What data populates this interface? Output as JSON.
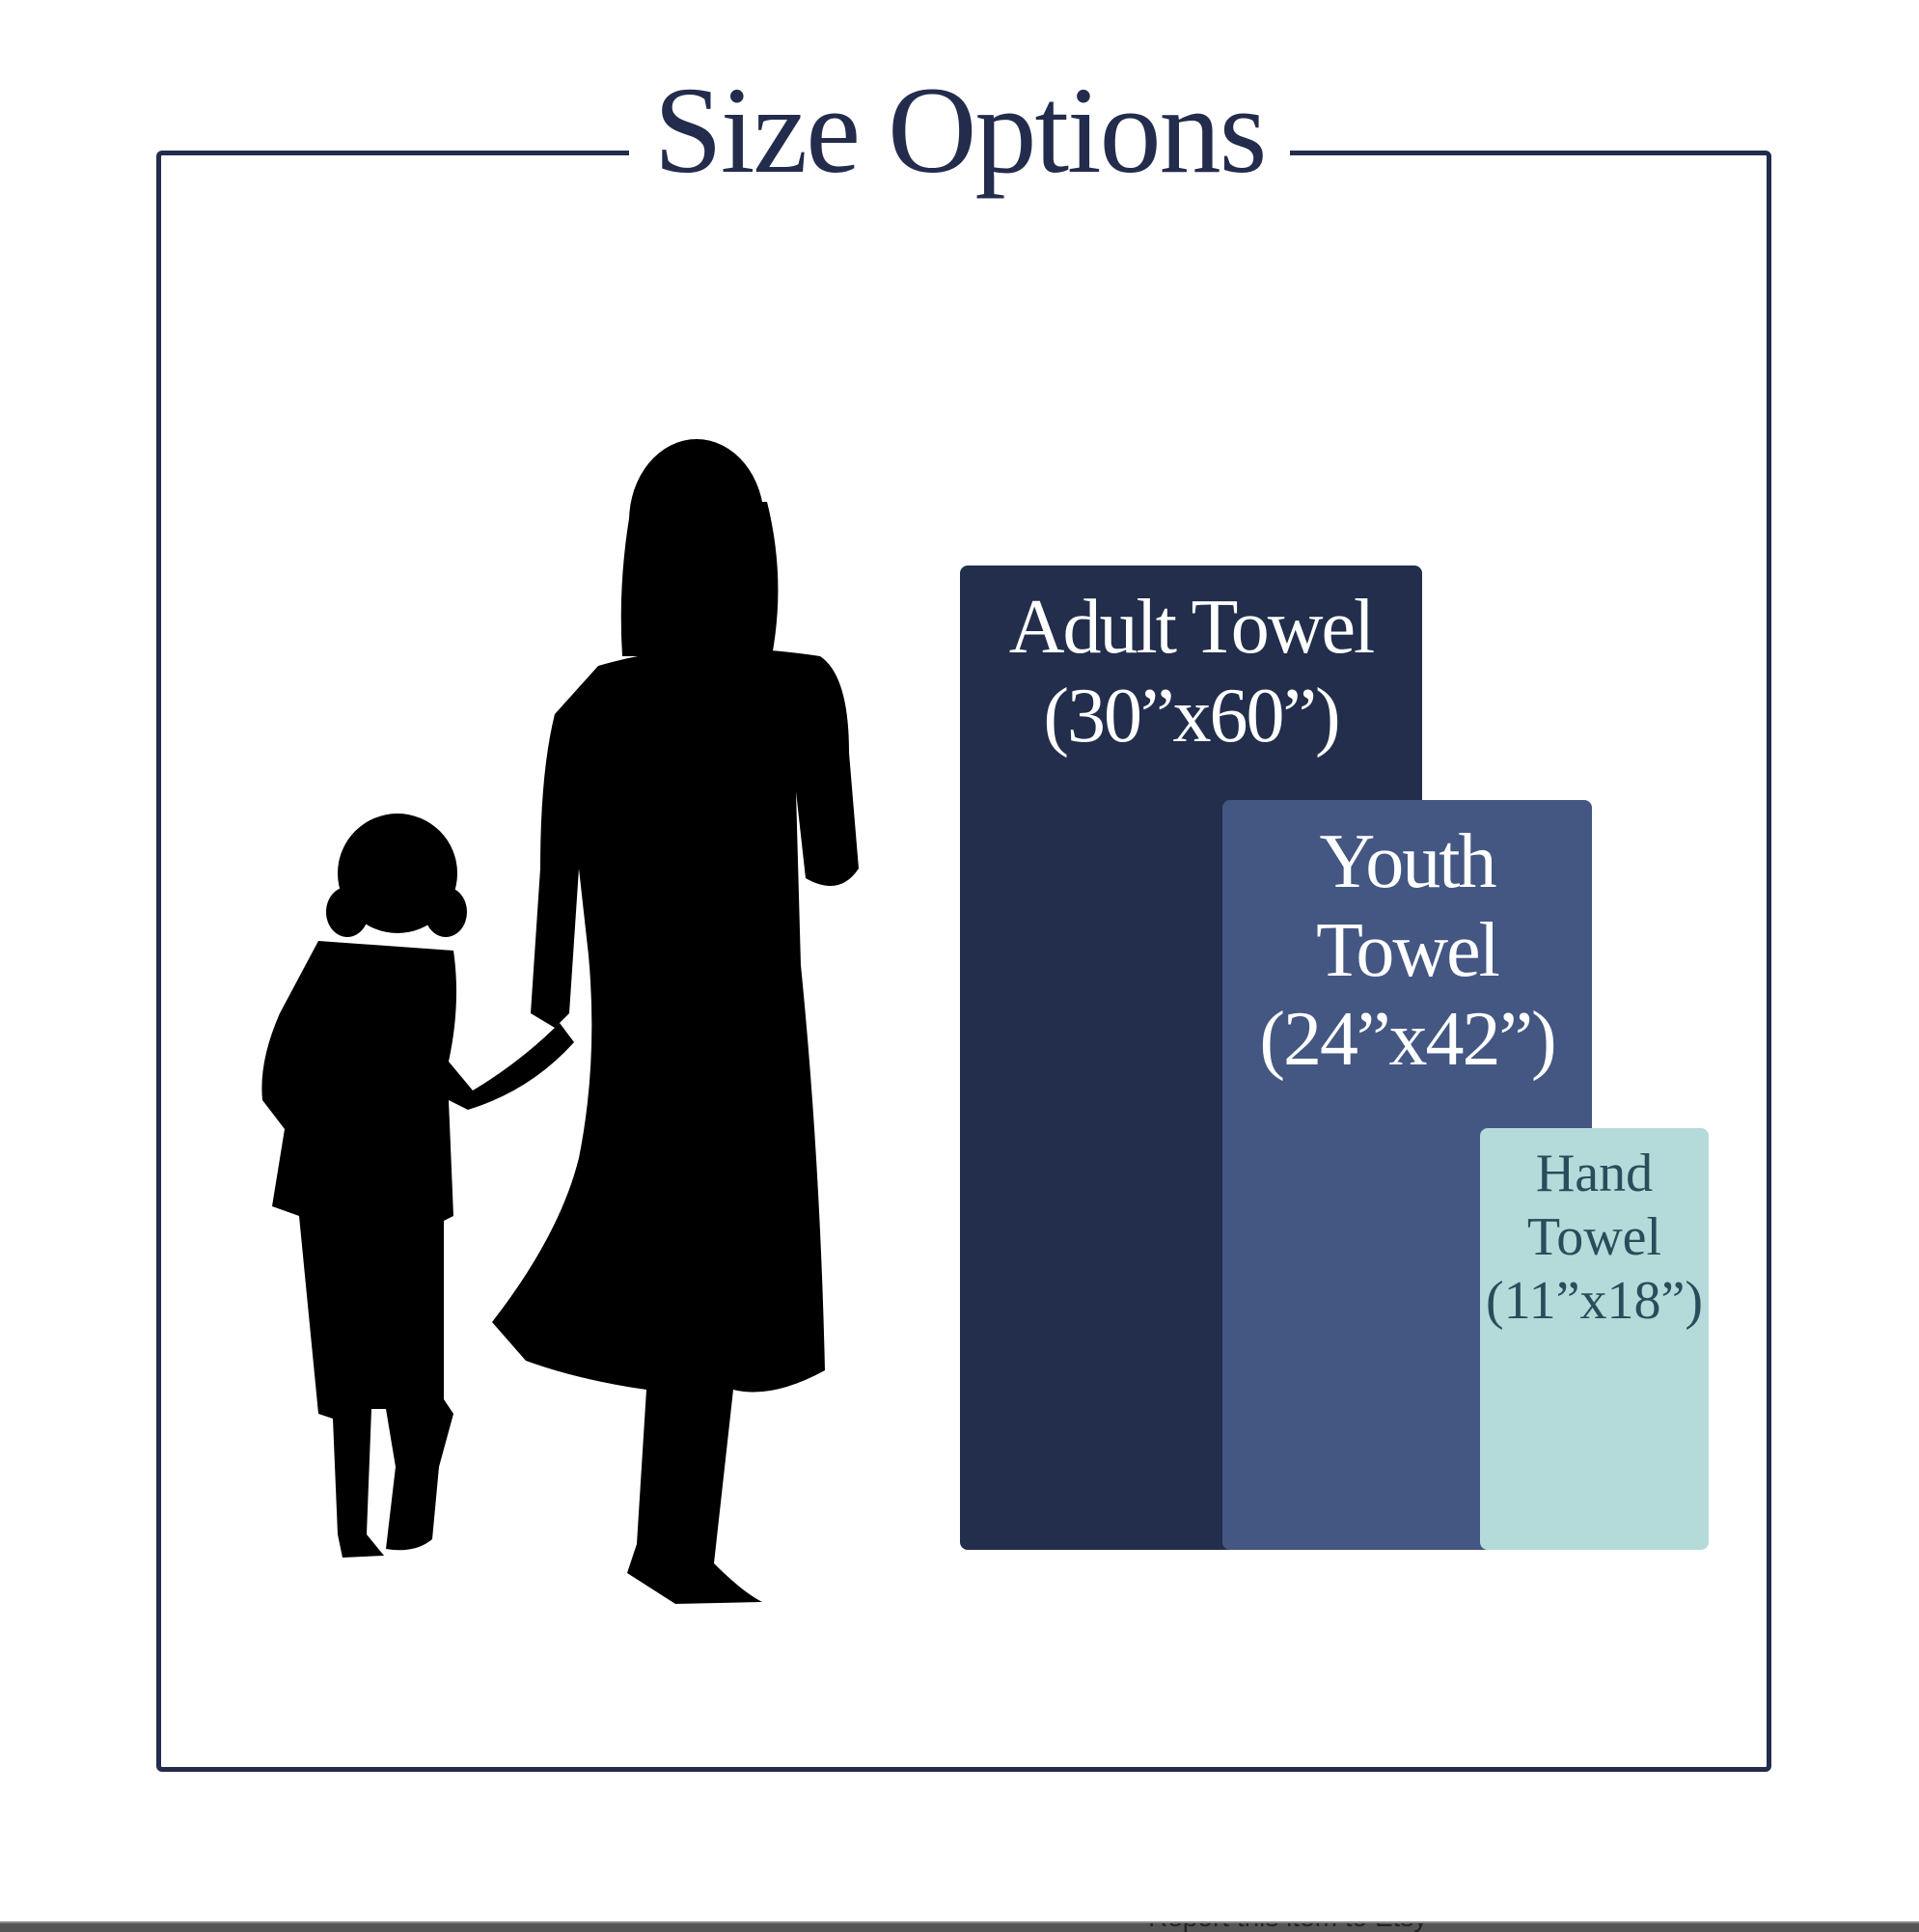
{
  "title": "Size Options",
  "towels": [
    {
      "name": "Adult Towel",
      "dimensions": "(30”x60”)",
      "color": "#222e4c"
    },
    {
      "name": "Youth Towel",
      "dimensions": "(24”x42”)",
      "color": "#445783"
    },
    {
      "name": "Hand Towel",
      "dimensions": "(11”x18”)",
      "color": "#b4dbda"
    }
  ],
  "footer": {
    "report_link": "Report this item to Etsy"
  }
}
